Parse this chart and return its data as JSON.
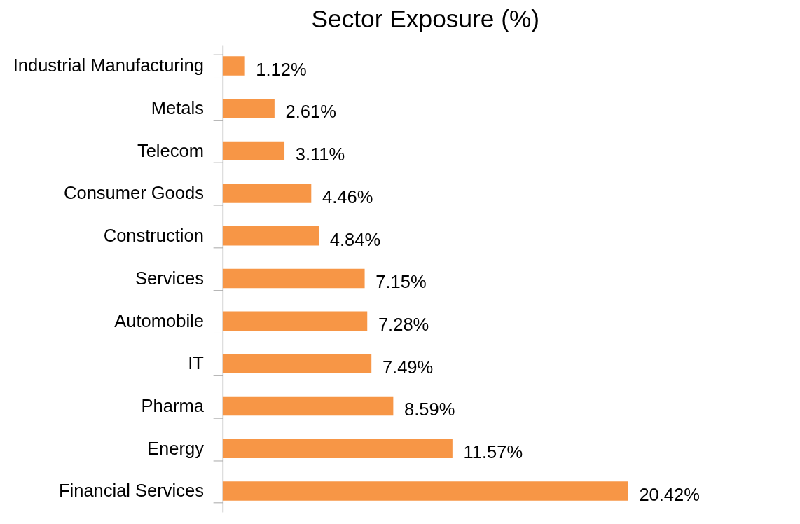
{
  "chart_data": {
    "type": "bar",
    "orientation": "horizontal",
    "title": "Sector Exposure (%)",
    "categories": [
      "Industrial Manufacturing",
      "Metals",
      "Telecom",
      "Consumer Goods",
      "Construction",
      "Services",
      "Automobile",
      "IT",
      "Pharma",
      "Energy",
      "Financial Services"
    ],
    "values": [
      1.12,
      2.61,
      3.11,
      4.46,
      4.84,
      7.15,
      7.28,
      7.49,
      8.59,
      11.57,
      20.42
    ],
    "value_labels": [
      "1.12%",
      "2.61%",
      "3.11%",
      "4.46%",
      "4.84%",
      "7.15%",
      "7.28%",
      "7.49%",
      "8.59%",
      "11.57%",
      "20.42%"
    ],
    "color": "#f79646",
    "tick_labels": "y",
    "grid": false
  }
}
